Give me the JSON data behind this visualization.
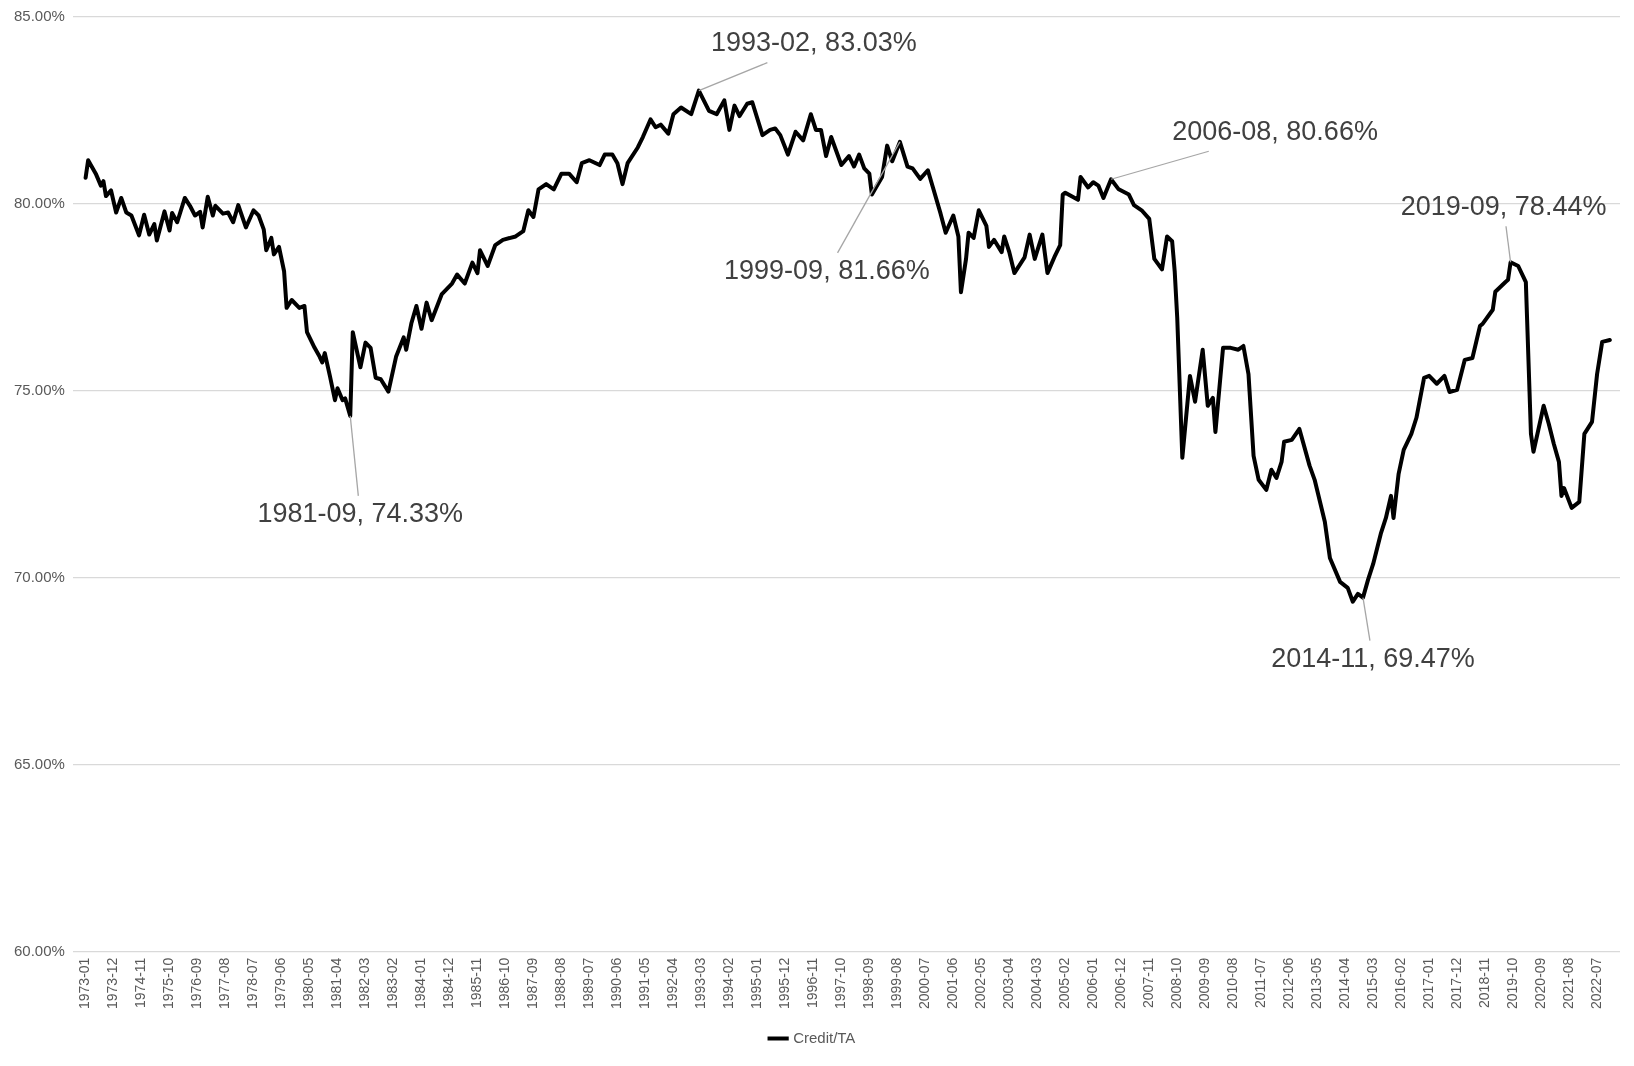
{
  "chart_data": {
    "type": "line",
    "legend": "bottom",
    "grid": "y",
    "marker": "none",
    "line_style": "solid",
    "ylim": [
      60,
      85
    ],
    "yticks": [
      {
        "value": 60,
        "label": "60.00%"
      },
      {
        "value": 65,
        "label": "65.00%"
      },
      {
        "value": 70,
        "label": "70.00%"
      },
      {
        "value": 75,
        "label": "75.00%"
      },
      {
        "value": 80,
        "label": "80.00%"
      },
      {
        "value": 85,
        "label": "85.00%"
      }
    ],
    "xlim": [
      "1972-08",
      "2023-04"
    ],
    "xticks": [
      "1973-01",
      "1973-12",
      "1974-11",
      "1975-10",
      "1976-09",
      "1977-08",
      "1978-07",
      "1979-06",
      "1980-05",
      "1981-04",
      "1982-03",
      "1983-02",
      "1984-01",
      "1984-12",
      "1985-11",
      "1986-10",
      "1987-09",
      "1988-08",
      "1989-07",
      "1990-06",
      "1991-05",
      "1992-04",
      "1993-03",
      "1994-02",
      "1995-01",
      "1995-12",
      "1996-11",
      "1997-10",
      "1998-09",
      "1999-08",
      "2000-07",
      "2001-06",
      "2002-05",
      "2003-04",
      "2004-03",
      "2005-02",
      "2006-01",
      "2006-12",
      "2007-11",
      "2008-10",
      "2009-09",
      "2010-08",
      "2011-07",
      "2012-06",
      "2013-05",
      "2014-04",
      "2015-03",
      "2016-02",
      "2017-01",
      "2017-12",
      "2018-11",
      "2019-10",
      "2020-09",
      "2021-08",
      "2022-07"
    ],
    "x": [
      "1973-01",
      "1973-02",
      "1973-05",
      "1973-07",
      "1973-08",
      "1973-09",
      "1973-11",
      "1974-01",
      "1974-03",
      "1974-05",
      "1974-07",
      "1974-10",
      "1974-12",
      "1975-02",
      "1975-04",
      "1975-05",
      "1975-08",
      "1975-10",
      "1975-11",
      "1976-01",
      "1976-04",
      "1976-06",
      "1976-08",
      "1976-10",
      "1976-11",
      "1977-01",
      "1977-03",
      "1977-04",
      "1977-07",
      "1977-09",
      "1977-11",
      "1978-01",
      "1978-04",
      "1978-07",
      "1978-09",
      "1978-11",
      "1978-12",
      "1979-02",
      "1979-03",
      "1979-05",
      "1979-07",
      "1979-08",
      "1979-10",
      "1980-01",
      "1980-03",
      "1980-04",
      "1980-07",
      "1980-09",
      "1980-10",
      "1980-11",
      "1981-01",
      "1981-03",
      "1981-04",
      "1981-06",
      "1981-07",
      "1981-09",
      "1981-10",
      "1982-01",
      "1982-03",
      "1982-05",
      "1982-07",
      "1982-09",
      "1982-12",
      "1983-03",
      "1983-06",
      "1983-07",
      "1983-09",
      "1983-11",
      "1984-01",
      "1984-03",
      "1984-05",
      "1984-09",
      "1985-01",
      "1985-03",
      "1985-06",
      "1985-09",
      "1985-11",
      "1985-12",
      "1986-03",
      "1986-06",
      "1986-09",
      "1987-02",
      "1987-05",
      "1987-07",
      "1987-09",
      "1987-11",
      "1988-02",
      "1988-05",
      "1988-08",
      "1988-11",
      "1989-02",
      "1989-04",
      "1989-07",
      "1989-11",
      "1990-01",
      "1990-04",
      "1990-06",
      "1990-08",
      "1990-10",
      "1991-02",
      "1991-04",
      "1991-07",
      "1991-09",
      "1991-11",
      "1992-02",
      "1992-04",
      "1992-07",
      "1992-11",
      "1993-02",
      "1993-06",
      "1993-09",
      "1993-12",
      "1994-02",
      "1994-04",
      "1994-06",
      "1994-09",
      "1994-11",
      "1995-03",
      "1995-06",
      "1995-08",
      "1995-10",
      "1996-01",
      "1996-04",
      "1996-07",
      "1996-10",
      "1996-12",
      "1997-02",
      "1997-04",
      "1997-06",
      "1997-10",
      "1998-01",
      "1998-03",
      "1998-05",
      "1998-07",
      "1998-09",
      "1998-10",
      "1999-02",
      "1999-04",
      "1999-06",
      "1999-09",
      "1999-12",
      "2000-02",
      "2000-05",
      "2000-08",
      "2000-10",
      "2001-01",
      "2001-03",
      "2001-06",
      "2001-08",
      "2001-09",
      "2001-11",
      "2001-12",
      "2002-02",
      "2002-04",
      "2002-07",
      "2002-08",
      "2002-10",
      "2003-01",
      "2003-02",
      "2003-04",
      "2003-06",
      "2003-10",
      "2003-12",
      "2004-02",
      "2004-05",
      "2004-07",
      "2004-10",
      "2004-12",
      "2005-01",
      "2005-02",
      "2005-07",
      "2005-08",
      "2005-11",
      "2006-01",
      "2006-03",
      "2006-05",
      "2006-08",
      "2006-11",
      "2007-03",
      "2007-05",
      "2007-08",
      "2007-11",
      "2008-01",
      "2008-04",
      "2008-06",
      "2008-08",
      "2008-09",
      "2008-10",
      "2008-12",
      "2009-03",
      "2009-05",
      "2009-08",
      "2009-10",
      "2009-12",
      "2010-01",
      "2010-04",
      "2010-07",
      "2010-10",
      "2010-12",
      "2011-02",
      "2011-04",
      "2011-06",
      "2011-09",
      "2011-11",
      "2012-01",
      "2012-03",
      "2012-04",
      "2012-07",
      "2012-10",
      "2013-02",
      "2013-04",
      "2013-08",
      "2013-10",
      "2014-02",
      "2014-05",
      "2014-07",
      "2014-09",
      "2014-11",
      "2015-01",
      "2015-03",
      "2015-06",
      "2015-08",
      "2015-10",
      "2015-11",
      "2016-01",
      "2016-03",
      "2016-06",
      "2016-08",
      "2016-11",
      "2017-01",
      "2017-04",
      "2017-07",
      "2017-09",
      "2017-12",
      "2018-03",
      "2018-06",
      "2018-09",
      "2018-10",
      "2019-02",
      "2019-03",
      "2019-07",
      "2019-08",
      "2019-09",
      "2019-12",
      "2020-03",
      "2020-05",
      "2020-06",
      "2020-10",
      "2020-12",
      "2021-02",
      "2021-04",
      "2021-05",
      "2021-06",
      "2021-09",
      "2021-12",
      "2022-02",
      "2022-05",
      "2022-07",
      "2022-09",
      "2022-12"
    ],
    "series": [
      {
        "name": "Credit/TA",
        "color": "#000000",
        "values": [
          80.7,
          81.17,
          80.81,
          80.49,
          80.61,
          80.21,
          80.36,
          79.77,
          80.16,
          79.77,
          79.69,
          79.16,
          79.71,
          79.18,
          79.46,
          79.02,
          79.8,
          79.29,
          79.76,
          79.51,
          80.16,
          79.95,
          79.69,
          79.79,
          79.37,
          80.19,
          79.69,
          79.95,
          79.74,
          79.77,
          79.51,
          79.97,
          79.37,
          79.83,
          79.69,
          79.32,
          78.76,
          79.09,
          78.65,
          78.85,
          78.2,
          77.22,
          77.43,
          77.22,
          77.27,
          76.57,
          76.15,
          75.91,
          75.76,
          76.01,
          75.4,
          74.75,
          75.07,
          74.75,
          74.8,
          74.33,
          76.57,
          75.63,
          76.29,
          76.15,
          75.35,
          75.31,
          74.98,
          75.91,
          76.43,
          76.1,
          76.8,
          77.27,
          76.66,
          77.36,
          76.89,
          77.59,
          77.87,
          78.11,
          77.87,
          78.43,
          78.15,
          78.76,
          78.34,
          78.9,
          79.04,
          79.13,
          79.27,
          79.83,
          79.65,
          80.39,
          80.53,
          80.39,
          80.81,
          80.81,
          80.58,
          81.09,
          81.17,
          81.04,
          81.32,
          81.32,
          81.09,
          80.53,
          81.09,
          81.51,
          81.79,
          82.26,
          82.05,
          82.12,
          81.88,
          82.4,
          82.58,
          82.4,
          83.03,
          82.49,
          82.4,
          82.77,
          81.98,
          82.63,
          82.35,
          82.68,
          82.72,
          81.84,
          81.98,
          82.02,
          81.84,
          81.32,
          81.93,
          81.7,
          82.4,
          81.98,
          81.98,
          81.28,
          81.79,
          81.04,
          81.28,
          81.0,
          81.32,
          80.95,
          80.81,
          80.25,
          80.72,
          81.56,
          81.14,
          81.66,
          81.0,
          80.95,
          80.67,
          80.9,
          80.44,
          79.74,
          79.23,
          79.69,
          79.13,
          77.64,
          78.53,
          79.23,
          79.09,
          79.83,
          79.41,
          78.85,
          79.04,
          78.71,
          79.13,
          78.71,
          78.15,
          78.57,
          79.18,
          78.53,
          79.18,
          78.15,
          78.62,
          78.9,
          80.25,
          80.3,
          80.11,
          80.72,
          80.44,
          80.58,
          80.49,
          80.16,
          80.66,
          80.39,
          80.25,
          79.97,
          79.83,
          79.6,
          78.53,
          78.25,
          79.13,
          79.0,
          78.2,
          76.95,
          73.21,
          75.4,
          74.71,
          76.1,
          74.6,
          74.81,
          73.9,
          76.15,
          76.15,
          76.1,
          76.2,
          75.45,
          73.26,
          72.62,
          72.35,
          72.89,
          72.67,
          73.1,
          73.64,
          73.69,
          73.98,
          73.0,
          72.62,
          71.5,
          70.53,
          69.89,
          69.73,
          69.36,
          69.57,
          69.47,
          69.95,
          70.37,
          71.18,
          71.6,
          72.19,
          71.6,
          72.78,
          73.42,
          73.85,
          74.28,
          75.35,
          75.4,
          75.19,
          75.4,
          74.97,
          75.03,
          75.83,
          75.88,
          76.74,
          76.79,
          77.17,
          77.65,
          77.91,
          77.97,
          78.44,
          78.34,
          77.91,
          73.85,
          73.37,
          74.6,
          74.12,
          73.58,
          73.1,
          72.19,
          72.4,
          71.87,
          72.03,
          73.85,
          74.17,
          75.45,
          76.31,
          76.36
        ]
      }
    ],
    "annotations": [
      {
        "text": "1981-09, 74.33%",
        "x": "1981-09",
        "y": 74.33
      },
      {
        "text": "1993-02, 83.03%",
        "x": "1993-02",
        "y": 83.03
      },
      {
        "text": "1999-09, 81.66%",
        "x": "1999-09",
        "y": 81.66
      },
      {
        "text": "2006-08, 80.66%",
        "x": "2006-08",
        "y": 80.66
      },
      {
        "text": "2014-11, 69.47%",
        "x": "2014-11",
        "y": 69.47
      },
      {
        "text": "2019-09, 78.44%",
        "x": "2019-09",
        "y": 78.44
      }
    ]
  }
}
